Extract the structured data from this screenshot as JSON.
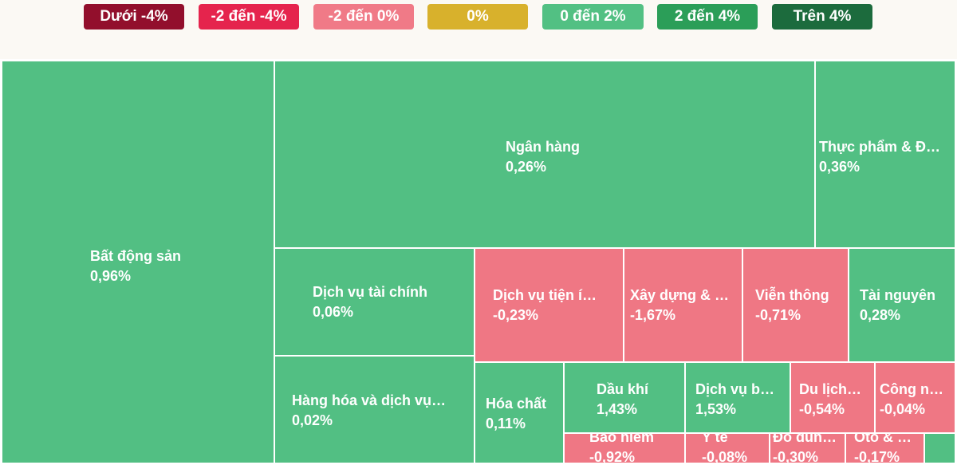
{
  "legend": [
    {
      "label": "Dưới -4%",
      "color": "#920f2c"
    },
    {
      "label": "-2 đến -4%",
      "color": "#e5244d"
    },
    {
      "label": "-2 đến 0%",
      "color": "#f07a87"
    },
    {
      "label": "0%",
      "color": "#d8b12c"
    },
    {
      "label": "0 đến 2%",
      "color": "#52c083"
    },
    {
      "label": "2 đến 4%",
      "color": "#2b9e58"
    },
    {
      "label": "Trên 4%",
      "color": "#1c6b3d"
    }
  ],
  "colors": {
    "positive": "#52bf83",
    "negative": "#ef7784"
  },
  "chart_data": {
    "type": "treemap",
    "unit": "%",
    "sectors": [
      {
        "name": "Bất động sản",
        "value": "0,96%",
        "change": 0.96
      },
      {
        "name": "Ngân hàng",
        "value": "0,26%",
        "change": 0.26
      },
      {
        "name": "Thực phẩm & Đ…",
        "value": "0,36%",
        "change": 0.36
      },
      {
        "name": "Dịch vụ tài chính",
        "value": "0,06%",
        "change": 0.06
      },
      {
        "name": "Dịch vụ tiện í…",
        "value": "-0,23%",
        "change": -0.23
      },
      {
        "name": "Xây dựng & …",
        "value": "-1,67%",
        "change": -1.67
      },
      {
        "name": "Viễn thông",
        "value": "-0,71%",
        "change": -0.71
      },
      {
        "name": "Tài nguyên",
        "value": "0,28%",
        "change": 0.28
      },
      {
        "name": "Hàng hóa và dịch vụ…",
        "value": "0,02%",
        "change": 0.02
      },
      {
        "name": "Hóa chất",
        "value": "0,11%",
        "change": 0.11
      },
      {
        "name": "Dầu khí",
        "value": "1,43%",
        "change": 1.43
      },
      {
        "name": "Dịch vụ b…",
        "value": "1,53%",
        "change": 1.53
      },
      {
        "name": "Du lịch…",
        "value": "-0,54%",
        "change": -0.54
      },
      {
        "name": "Công n…",
        "value": "-0,04%",
        "change": -0.04
      },
      {
        "name": "Bảo hiểm",
        "value": "-0,92%",
        "change": -0.92
      },
      {
        "name": "Y tế",
        "value": "-0,08%",
        "change": -0.08
      },
      {
        "name": "Đồ dùn…",
        "value": "-0,30%",
        "change": -0.3
      },
      {
        "name": "Ôtô & …",
        "value": "-0,17%",
        "change": -0.17
      }
    ]
  }
}
